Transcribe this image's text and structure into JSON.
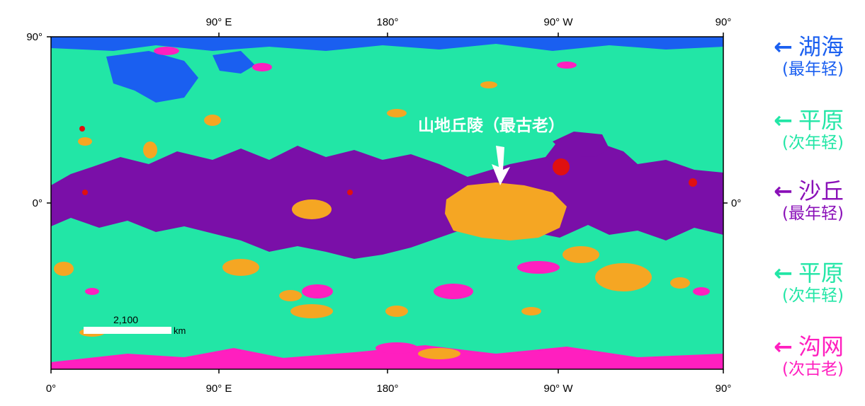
{
  "map": {
    "top_ticks": [
      "90° E",
      "180°",
      "90° W",
      "90°"
    ],
    "bottom_ticks": [
      "0°",
      "90° E",
      "180°",
      "90° W",
      "90°"
    ],
    "left_ticks": [
      "90°",
      "0°"
    ],
    "right_tick": "0°",
    "annotation": "山地丘陵（最古老）",
    "scale_bar": {
      "value": "2,100",
      "unit": "km"
    },
    "colors": {
      "plains": "#22e6a6",
      "lakes": "#1a5ff0",
      "dunes": "#7a0fa8",
      "mountains": "#f5a623",
      "labyrinth": "#ff1fbf",
      "craters": "#e01010"
    }
  },
  "legend": [
    {
      "name": "湖海",
      "sub": "(最年轻)",
      "color": "#1a5ff0"
    },
    {
      "name": "平原",
      "sub": "(次年轻)",
      "color": "#22e6a6"
    },
    {
      "name": "沙丘",
      "sub": "(最年轻)",
      "color": "#8a10b8"
    },
    {
      "name": "平原",
      "sub": "(次年轻)",
      "color": "#22e6a6"
    },
    {
      "name": "沟网",
      "sub": "(次古老)",
      "color": "#ff1fbf"
    }
  ],
  "legend_arrow": "←"
}
